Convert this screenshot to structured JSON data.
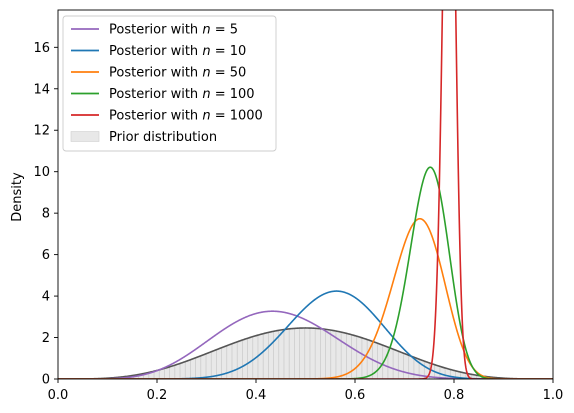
{
  "chart_data": {
    "type": "line",
    "title": "",
    "xlabel": "",
    "ylabel": "Density",
    "xlim": [
      0,
      1
    ],
    "ylim": [
      0,
      17.8
    ],
    "x_ticks": [
      "0.0",
      "0.2",
      "0.4",
      "0.6",
      "0.8",
      "1.0"
    ],
    "y_ticks": [
      "0",
      "2",
      "4",
      "6",
      "8",
      "10",
      "12",
      "14",
      "16"
    ],
    "legend_position": "top-left",
    "grid": false,
    "prior": {
      "name": "Prior distribution",
      "type": "beta",
      "alpha": 5,
      "beta": 5,
      "fill_color": "#e8e8e8",
      "line_color": "#555555"
    },
    "series": [
      {
        "name_prefix": "Posterior with ",
        "n_label": "n = 5",
        "color": "#9467bd",
        "alpha": 7.5,
        "beta": 9.5
      },
      {
        "name_prefix": "Posterior with ",
        "n_label": "n = 10",
        "color": "#1f77b4",
        "alpha": 15.8,
        "beta": 12.5
      },
      {
        "name_prefix": "Posterior with ",
        "n_label": "n = 50",
        "color": "#ff7f0e",
        "alpha": 54,
        "beta": 20.5
      },
      {
        "name_prefix": "Posterior with ",
        "n_label": "n = 100",
        "color": "#2ca02c",
        "alpha": 92,
        "beta": 31
      },
      {
        "name_prefix": "Posterior with ",
        "n_label": "n = 1000",
        "color": "#d62728",
        "alpha": 860,
        "beta": 229
      }
    ]
  }
}
